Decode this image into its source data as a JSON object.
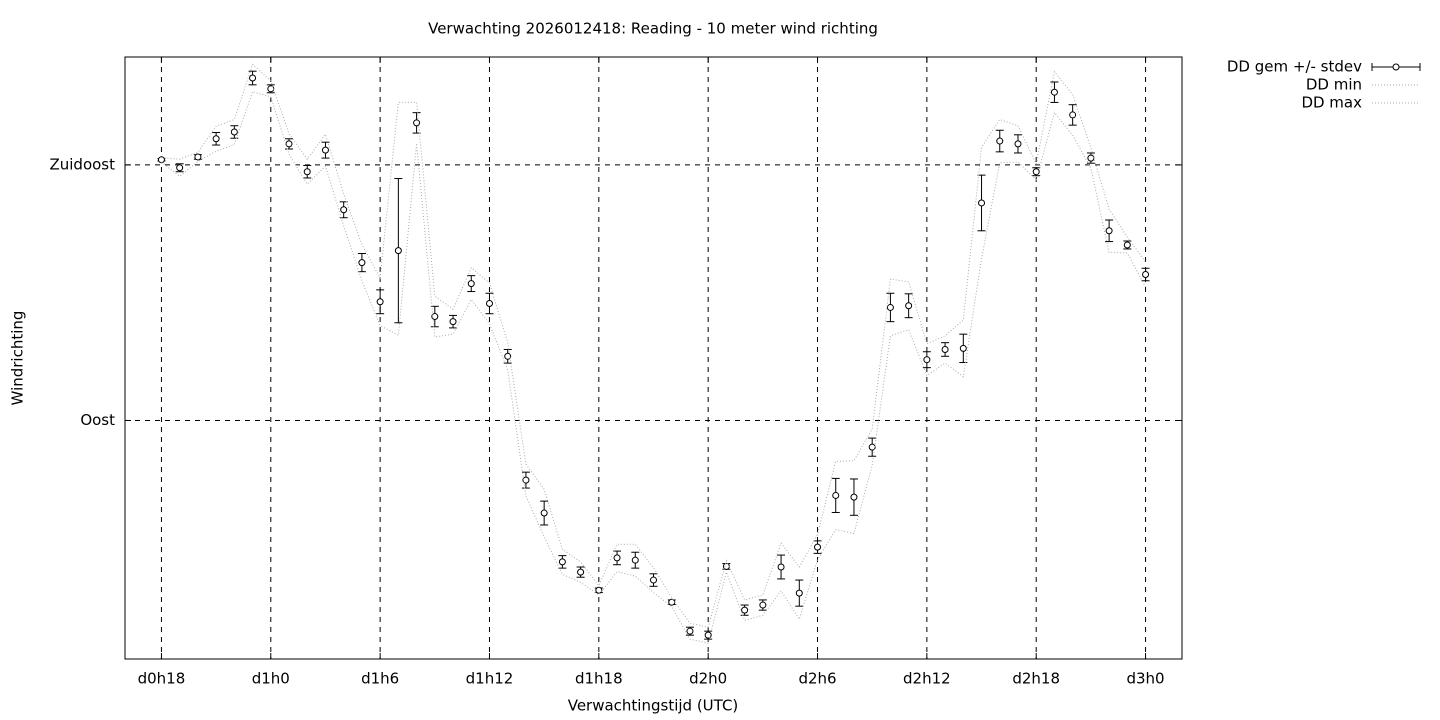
{
  "chart_data": {
    "type": "errorbar",
    "title": "Verwachting 2026012418: Reading - 10 meter wind richting",
    "x_label": "Verwachtingstijd (UTC)",
    "y_label": "Windrichting",
    "xlim": [
      16,
      74
    ],
    "ylim": [
      48,
      154
    ],
    "xticks": [
      {
        "value": 18,
        "label": "d0h18"
      },
      {
        "value": 24,
        "label": "d1h0"
      },
      {
        "value": 30,
        "label": "d1h6"
      },
      {
        "value": 36,
        "label": "d1h12"
      },
      {
        "value": 42,
        "label": "d1h18"
      },
      {
        "value": 48,
        "label": "d2h0"
      },
      {
        "value": 54,
        "label": "d2h6"
      },
      {
        "value": 60,
        "label": "d2h12"
      },
      {
        "value": 66,
        "label": "d2h18"
      },
      {
        "value": 72,
        "label": "d3h0"
      }
    ],
    "yticks": [
      {
        "value": 90,
        "label": "Oost"
      },
      {
        "value": 135,
        "label": "Zuidoost"
      }
    ],
    "grid": true,
    "legend": "outside-top-right",
    "x": [
      18,
      19,
      20,
      21,
      22,
      23,
      24,
      25,
      26,
      27,
      28,
      29,
      30,
      31,
      32,
      33,
      34,
      35,
      36,
      37,
      38,
      39,
      40,
      41,
      42,
      43,
      44,
      45,
      46,
      47,
      48,
      49,
      50,
      51,
      52,
      53,
      54,
      55,
      56,
      57,
      58,
      59,
      60,
      61,
      62,
      63,
      64,
      65,
      66,
      67,
      68,
      69,
      70,
      71,
      72
    ],
    "series": [
      {
        "name": "DD gem +/- stdev",
        "color": "#000000",
        "style": "errorbar",
        "values": [
          135.9,
          134.5,
          136.4,
          139.6,
          140.8,
          150.3,
          148.4,
          138.7,
          133.8,
          137.6,
          127.1,
          117.8,
          110.9,
          119.9,
          142.4,
          108.3,
          107.4,
          114.1,
          110.6,
          101.3,
          79.5,
          73.7,
          65.1,
          63.3,
          60.1,
          65.8,
          65.4,
          61.9,
          58.0,
          52.9,
          52.2,
          64.3,
          56.6,
          57.5,
          64.2,
          59.6,
          67.7,
          76.8,
          76.5,
          85.3,
          109.9,
          110.2,
          100.7,
          102.5,
          102.7,
          128.3,
          139.2,
          138.7,
          133.8,
          147.8,
          143.8,
          136.2,
          123.4,
          120.9,
          115.7
        ],
        "errors": [
          0.2,
          0.7,
          0.4,
          1.1,
          1.1,
          1.2,
          0.7,
          0.9,
          1.1,
          1.4,
          1.4,
          1.6,
          2.1,
          12.7,
          1.8,
          1.8,
          1.1,
          1.4,
          1.8,
          1.2,
          1.4,
          2.1,
          1.1,
          0.9,
          0.4,
          1.2,
          1.4,
          1.1,
          0.4,
          0.7,
          0.7,
          0.5,
          0.9,
          0.9,
          2.1,
          2.3,
          1.1,
          3.0,
          3.2,
          1.6,
          2.5,
          2.1,
          1.4,
          1.2,
          2.5,
          4.9,
          1.9,
          1.6,
          0.7,
          1.8,
          1.8,
          0.9,
          1.9,
          0.7,
          1.1
        ]
      },
      {
        "name": "DD min",
        "color": "#aaaaaa",
        "style": "dotted",
        "values": [
          135.5,
          133,
          135.6,
          137.4,
          138.6,
          147.9,
          147,
          136.9,
          131.6,
          134.8,
          124.3,
          114.6,
          106.7,
          105,
          138.8,
          104.7,
          105.2,
          111.3,
          107,
          98.9,
          76.7,
          69.5,
          62.9,
          61.5,
          59.3,
          63.4,
          62.6,
          59.7,
          57.2,
          51.5,
          50.8,
          63.3,
          54.8,
          55.7,
          60,
          55,
          65.5,
          70.8,
          70.1,
          82.1,
          104.9,
          106,
          97.9,
          100.1,
          97.7,
          118.5,
          135.4,
          135.5,
          132.4,
          144.2,
          140.2,
          134.4,
          119.6,
          119.5,
          113.5
        ]
      },
      {
        "name": "DD max",
        "color": "#aaaaaa",
        "style": "dotted",
        "values": [
          136.3,
          136,
          137.2,
          141.8,
          143,
          152.7,
          149.8,
          140.5,
          136,
          140.4,
          129.9,
          121,
          115.1,
          146,
          146,
          111.9,
          109.6,
          116.9,
          114.2,
          103.7,
          82.3,
          77.9,
          67.3,
          65.1,
          60.9,
          68.2,
          68.2,
          64.1,
          58.8,
          54.3,
          53.6,
          65.3,
          58.4,
          59.3,
          68.4,
          64.2,
          69.9,
          82.8,
          82.9,
          88.5,
          114.9,
          114.4,
          103.5,
          104.9,
          107.7,
          138.1,
          143,
          141.9,
          135.2,
          151.4,
          147.4,
          138,
          127.2,
          122.3,
          117.9
        ]
      }
    ]
  }
}
